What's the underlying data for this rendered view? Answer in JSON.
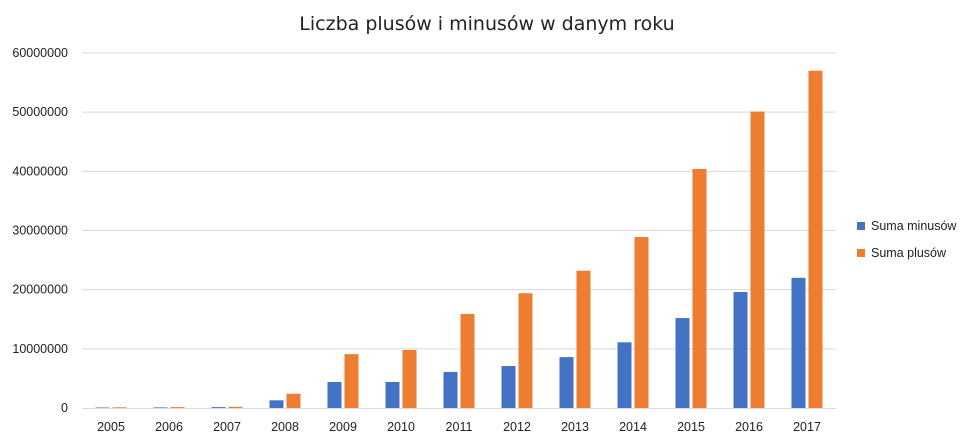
{
  "chart_data": {
    "type": "bar",
    "title": "Liczba plusów i minusów w danym roku",
    "xlabel": "",
    "ylabel": "",
    "categories": [
      "2005",
      "2006",
      "2007",
      "2008",
      "2009",
      "2010",
      "2011",
      "2012",
      "2013",
      "2014",
      "2015",
      "2016",
      "2017"
    ],
    "series": [
      {
        "name": "Suma minusów",
        "color": "#4472c4",
        "values": [
          80000,
          100000,
          150000,
          1300000,
          4400000,
          4400000,
          6100000,
          7100000,
          8600000,
          11100000,
          15200000,
          19600000,
          22000000
        ]
      },
      {
        "name": "Suma plusów",
        "color": "#ed7d31",
        "values": [
          120000,
          150000,
          200000,
          2400000,
          9100000,
          9800000,
          15900000,
          19400000,
          23200000,
          28900000,
          40400000,
          50100000,
          57000000
        ]
      }
    ],
    "ylim": [
      0,
      60000000
    ],
    "yticks": [
      "0",
      "10000000",
      "20000000",
      "30000000",
      "40000000",
      "50000000",
      "60000000"
    ],
    "grid": true,
    "legend_position": "right"
  }
}
